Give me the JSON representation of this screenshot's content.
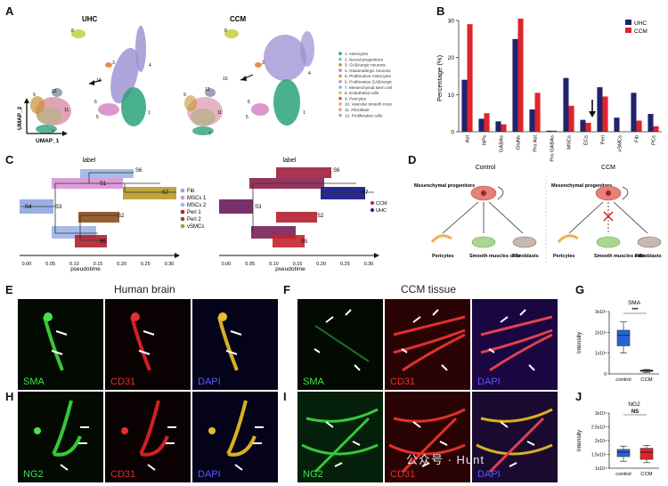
{
  "panels": {
    "A": {
      "letter": "A",
      "title_uhc": "UHC",
      "title_ccm": "CCM",
      "axis_y": "UMAP_2",
      "axis_x": "UMAP_1",
      "legend": [
        "1. Astrocytes",
        "2. Neural progenitors",
        "3. GABAergic neurons",
        "4. Glutamatergic neurons",
        "5. Proliferative Astrocytes",
        "6. Proliferative GABAergic neurons",
        "7. Mesenchymal stem cells",
        "8. Endothelial cells",
        "9. Pericytes",
        "10. Vascular smooth muscle cells",
        "11. Fibroblast",
        "12. Proliferative cells"
      ],
      "legend_colors": [
        "#2aa37a",
        "#7fb8d8",
        "#c6922f",
        "#9b8ed1",
        "#f08a4b",
        "#d98cc8",
        "#8bb0d6",
        "#c5cf3a",
        "#c75a7a",
        "#f2a15a",
        "#b8b28a",
        "#9aa3b8"
      ]
    },
    "B": {
      "letter": "B",
      "legend_uhc": "UHC",
      "legend_ccm": "CCM",
      "color_uhc": "#22236e",
      "color_ccm": "#e0242b"
    },
    "C": {
      "letter": "C",
      "title_left": "label",
      "title_right": "label",
      "xlabel_left": "pseudotime",
      "xlabel_right": "pseudotime",
      "legend_left": [
        "Fib",
        "MSCs 1",
        "MSCs 2",
        "Peri 1",
        "Peri 2",
        "vSMCs"
      ],
      "legend_left_colors": [
        "#8fa6e0",
        "#d88bd0",
        "#9bb5e6",
        "#b01f2c",
        "#8a4e1c",
        "#b89a2a"
      ],
      "legend_right": [
        "CCM",
        "UHC"
      ],
      "legend_right_colors": [
        "#d41f2a",
        "#1b1f8a"
      ],
      "states": [
        "S1",
        "S2",
        "S3",
        "S4",
        "S5",
        "S6",
        "S7"
      ],
      "ticks": [
        "0.00",
        "0.05",
        "0.10",
        "0.15",
        "0.20",
        "0.25",
        "0.30"
      ]
    },
    "D": {
      "letter": "D",
      "control_title": "Control",
      "ccm_title": "CCM",
      "progenitor_label": "Mesenchymal progenitors",
      "pericytes": "Pericytes",
      "smooth": "Smooth muscles cells",
      "fibroblasts": "Fibroblasts"
    },
    "E": {
      "letter": "E",
      "title": "Human brain",
      "ch1": "SMA",
      "ch2": "CD31",
      "ch3": "DAPI"
    },
    "F": {
      "letter": "F",
      "title": "CCM tissue",
      "ch1": "SMA",
      "ch2": "CD31",
      "ch3": "DAPI"
    },
    "G": {
      "letter": "G",
      "title": "SMA",
      "ylabel": "Intensity",
      "yticks": [
        "3x10⁴",
        "2x10⁴",
        "1x10⁴",
        "0"
      ],
      "categories": [
        "control",
        "CCM"
      ],
      "sig": "***"
    },
    "H": {
      "letter": "H",
      "ch1": "NG2",
      "ch2": "CD31",
      "ch3": "DAPI"
    },
    "I": {
      "letter": "I",
      "ch1": "NG2",
      "ch2": "CD31",
      "ch3": "DAPI"
    },
    "J": {
      "letter": "J",
      "title": "NG2",
      "ylabel": "Intensity",
      "yticks": [
        "3x10⁴",
        "2.5x10⁴",
        "2x10⁴",
        "1.5x10⁴",
        "1x10⁴"
      ],
      "categories": [
        "control",
        "CCM"
      ],
      "sig": "NS"
    },
    "watermark": "公众号 · Hunt"
  },
  "chart_data": [
    {
      "panel": "B",
      "type": "bar",
      "categories": [
        "Ast",
        "NPs",
        "GABAs",
        "GluNs",
        "Pro Ast",
        "Pro GABAs",
        "MSCs",
        "ECs",
        "Peri",
        "vSMCs",
        "Fib",
        "PCs"
      ],
      "ylabel": "Percentage (%)",
      "ylim": [
        0,
        30
      ],
      "yticks": [
        0,
        10,
        20,
        30
      ],
      "series": [
        {
          "name": "UHC",
          "color": "#22236e",
          "values": [
            14,
            3.5,
            2.8,
            25,
            6,
            0.3,
            14.5,
            3.2,
            12,
            3.8,
            10.5,
            4.8
          ]
        },
        {
          "name": "CCM",
          "color": "#e0242b",
          "values": [
            29,
            5,
            2,
            30.5,
            10.5,
            0.3,
            7,
            2.4,
            9.5,
            0,
            3,
            1.5
          ]
        }
      ]
    },
    {
      "panel": "G",
      "type": "box",
      "title": "SMA",
      "ylabel": "Intensity",
      "categories": [
        "control",
        "CCM"
      ],
      "boxes": [
        {
          "name": "control",
          "color": "#2b63d6",
          "min": 10000,
          "q1": 13500,
          "median": 18500,
          "q3": 21000,
          "max": 25000
        },
        {
          "name": "CCM",
          "color": "#d44a3a",
          "min": 700,
          "q1": 1200,
          "median": 1500,
          "q3": 1800,
          "max": 2100
        }
      ],
      "ylim": [
        0,
        30000
      ]
    },
    {
      "panel": "J",
      "type": "box",
      "title": "NG2",
      "ylabel": "Intensity",
      "categories": [
        "control",
        "CCM"
      ],
      "boxes": [
        {
          "name": "control",
          "color": "#2b63d6",
          "min": 12500,
          "q1": 14200,
          "median": 15800,
          "q3": 16800,
          "max": 18000
        },
        {
          "name": "CCM",
          "color": "#e0242b",
          "min": 12000,
          "q1": 13200,
          "median": 15800,
          "q3": 17200,
          "max": 18200
        }
      ],
      "ylim": [
        10000,
        30000
      ]
    }
  ]
}
